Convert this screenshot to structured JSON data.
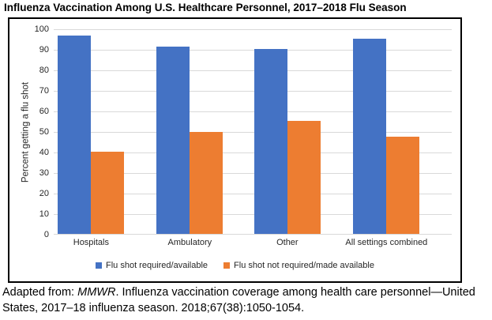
{
  "title": "Influenza Vaccination Among U.S. Healthcare Personnel, 2017–2018 Flu Season",
  "chart_data": {
    "type": "bar",
    "categories": [
      "Hospitals",
      "Ambulatory",
      "Other",
      "All settings combined"
    ],
    "series": [
      {
        "name": "Flu shot required/available",
        "color": "#4472C4",
        "values": [
          96.5,
          91,
          90,
          95
        ]
      },
      {
        "name": "Flu shot not required/made available",
        "color": "#ED7D31",
        "values": [
          40,
          49.5,
          55,
          47.5
        ]
      }
    ],
    "xlabel": "",
    "ylabel": "Percent getting a flu shot",
    "ylim": [
      0,
      100
    ],
    "ytick_step": 10,
    "grid": true,
    "gridline_color": "#D9D9D9",
    "legend_position": "bottom"
  },
  "caption": {
    "line1_prefix": "Adapted from: ",
    "line1_italic": "MMWR",
    "line1_rest": ". Influenza vaccination coverage among health care personnel—United",
    "line2": "States, 2017–18 influenza season. 2018;67(38):1050-1054."
  }
}
